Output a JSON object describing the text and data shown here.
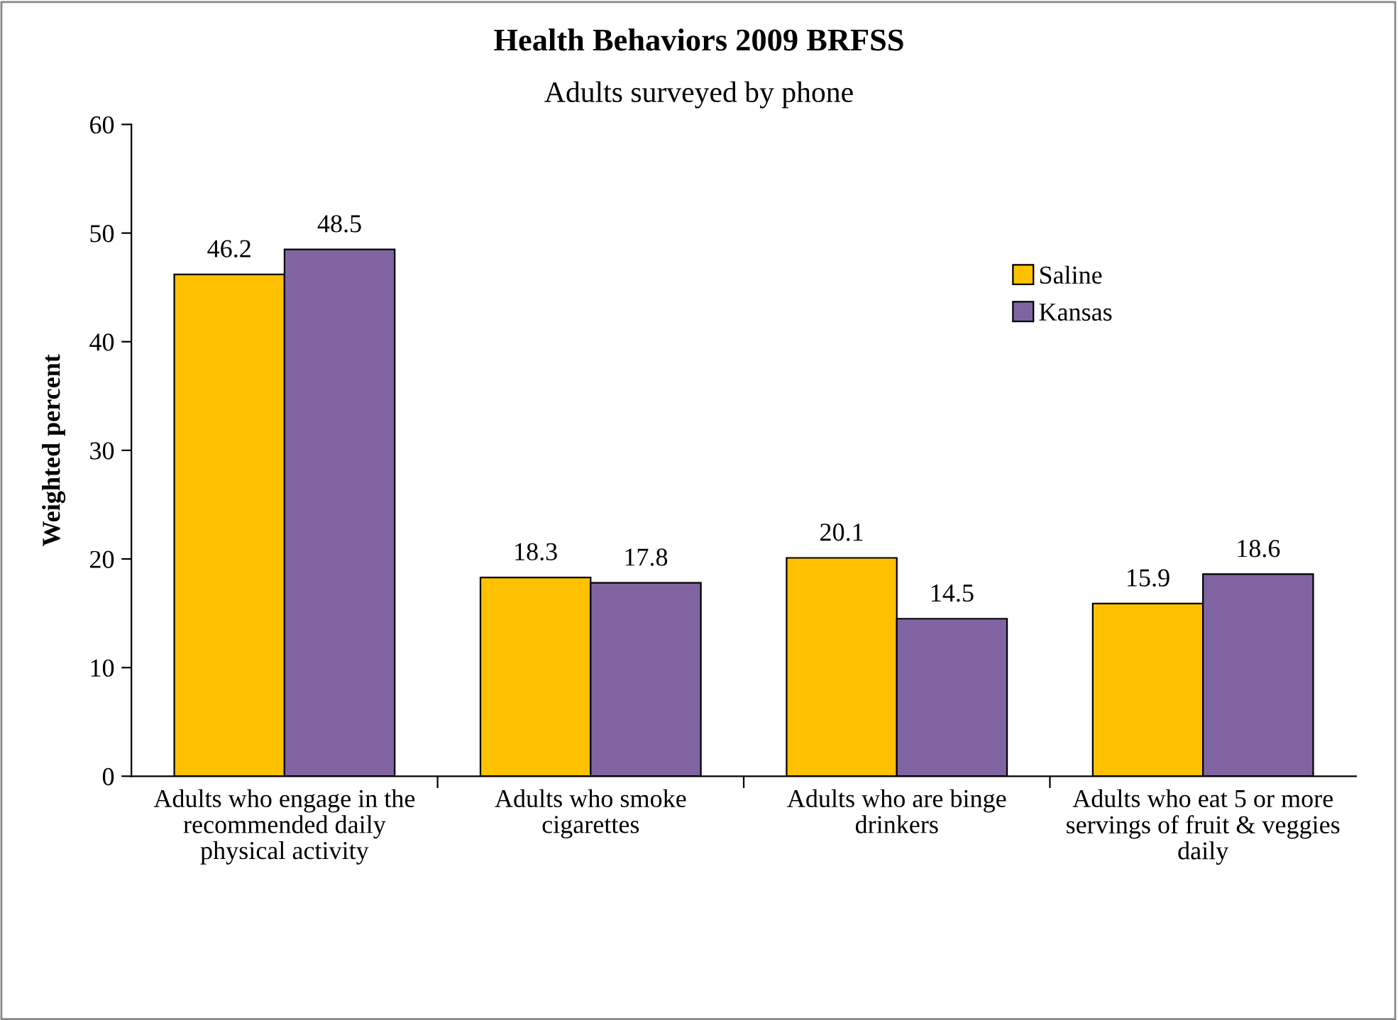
{
  "chart_data": {
    "type": "bar",
    "title": "Health Behaviors 2009 BRFSS",
    "subtitle": "Adults surveyed by phone",
    "ylabel": "Weighted percent",
    "categories": [
      "Adults who engage in the recommended daily physical activity",
      "Adults who smoke cigarettes",
      "Adults who are binge drinkers",
      "Adults who eat 5 or more servings of fruit & veggies daily"
    ],
    "series": [
      {
        "name": "Saline",
        "color": "#ffc000",
        "values": [
          46.2,
          18.3,
          20.1,
          15.9
        ]
      },
      {
        "name": "Kansas",
        "color": "#8064a2",
        "values": [
          48.5,
          17.8,
          14.5,
          18.6
        ]
      }
    ],
    "ylim": [
      0,
      60
    ],
    "yticks": [
      0,
      10,
      20,
      30,
      40,
      50,
      60
    ],
    "data_labels": true,
    "grid": false,
    "legend": "top right"
  }
}
